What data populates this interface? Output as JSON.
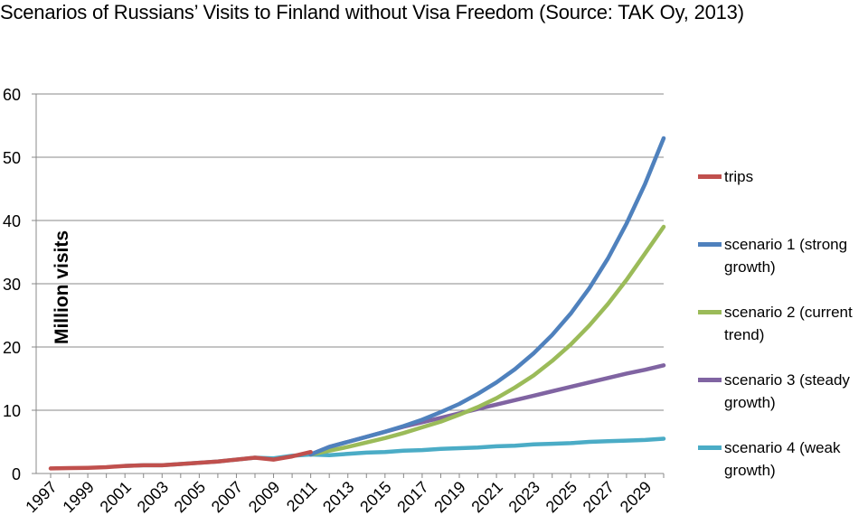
{
  "chart_data": {
    "type": "line",
    "title": "Scenarios of Russians’ Visits to Finland without Visa Freedom (Source: TAK Oy, 2013)",
    "ylabel": "Million visits",
    "xlabel": "",
    "ylim": [
      0,
      60
    ],
    "xlim": [
      1997,
      2030
    ],
    "yticks": [
      "0",
      "10",
      "20",
      "30",
      "40",
      "50",
      "60"
    ],
    "xticks": [
      "1997",
      "1999",
      "2001",
      "2003",
      "2005",
      "2007",
      "2009",
      "2011",
      "2013",
      "2015",
      "2017",
      "2019",
      "2021",
      "2023",
      "2025",
      "2027",
      "2029"
    ],
    "grid": "horizontal",
    "legend_position": "right",
    "series": [
      {
        "name": "trips",
        "color": "#c0504d",
        "x": [
          1997,
          1998,
          1999,
          2000,
          2001,
          2002,
          2003,
          2004,
          2005,
          2006,
          2007,
          2008,
          2009,
          2010,
          2011
        ],
        "y": [
          0.8,
          0.85,
          0.9,
          1.0,
          1.2,
          1.3,
          1.3,
          1.5,
          1.7,
          1.9,
          2.2,
          2.5,
          2.2,
          2.7,
          3.4
        ]
      },
      {
        "name": "scenario 1 (strong growth)",
        "color": "#4f81bd",
        "x": [
          2011,
          2012,
          2013,
          2014,
          2015,
          2016,
          2017,
          2018,
          2019,
          2020,
          2021,
          2022,
          2023,
          2024,
          2025,
          2026,
          2027,
          2028,
          2029,
          2030
        ],
        "y": [
          3.0,
          4.2,
          5.0,
          5.8,
          6.6,
          7.5,
          8.5,
          9.7,
          11.0,
          12.6,
          14.4,
          16.5,
          19.0,
          21.9,
          25.3,
          29.3,
          34.0,
          39.5,
          45.8,
          53.0
        ]
      },
      {
        "name": "scenario 2 (current trend)",
        "color": "#9bbb59",
        "x": [
          2011,
          2012,
          2013,
          2014,
          2015,
          2016,
          2017,
          2018,
          2019,
          2020,
          2021,
          2022,
          2023,
          2024,
          2025,
          2026,
          2027,
          2028,
          2029,
          2030
        ],
        "y": [
          3.0,
          3.6,
          4.2,
          4.9,
          5.6,
          6.4,
          7.3,
          8.2,
          9.3,
          10.5,
          11.9,
          13.6,
          15.5,
          17.8,
          20.4,
          23.4,
          26.8,
          30.6,
          34.8,
          39.0
        ]
      },
      {
        "name": "scenario 3 (steady growth)",
        "color": "#8064a2",
        "x": [
          2011,
          2012,
          2013,
          2014,
          2015,
          2016,
          2017,
          2018,
          2019,
          2020,
          2021,
          2022,
          2023,
          2024,
          2025,
          2026,
          2027,
          2028,
          2029,
          2030
        ],
        "y": [
          3.0,
          4.2,
          5.0,
          5.8,
          6.6,
          7.4,
          8.1,
          8.8,
          9.5,
          10.2,
          10.9,
          11.6,
          12.3,
          13.0,
          13.7,
          14.4,
          15.1,
          15.8,
          16.4,
          17.1
        ]
      },
      {
        "name": "scenario 4 (weak growth)",
        "color": "#4bacc6",
        "x": [
          2001,
          2002,
          2003,
          2004,
          2005,
          2006,
          2007,
          2008,
          2009,
          2010,
          2011,
          2012,
          2013,
          2014,
          2015,
          2016,
          2017,
          2018,
          2019,
          2020,
          2021,
          2022,
          2023,
          2024,
          2025,
          2026,
          2027,
          2028,
          2029,
          2030
        ],
        "y": [
          1.2,
          1.3,
          1.3,
          1.5,
          1.7,
          1.9,
          2.2,
          2.5,
          2.4,
          2.8,
          3.0,
          2.9,
          3.1,
          3.3,
          3.4,
          3.6,
          3.7,
          3.9,
          4.0,
          4.1,
          4.3,
          4.4,
          4.6,
          4.7,
          4.8,
          5.0,
          5.1,
          5.2,
          5.3,
          5.5
        ]
      }
    ]
  }
}
